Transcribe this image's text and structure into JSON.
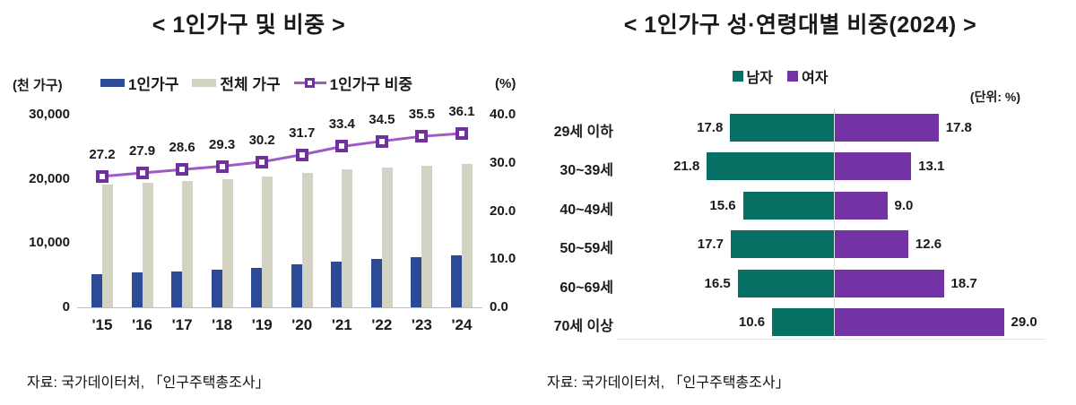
{
  "left_chart": {
    "title": "< 1인가구 및 비중 >",
    "unit_left": "(천 가구)",
    "unit_right": "(%)",
    "legend": [
      {
        "label": "1인가구",
        "color": "#2d4a96"
      },
      {
        "label": "전체 가구",
        "color": "#d3d3c4"
      },
      {
        "label": "1인가구 비중",
        "line_color": "#a05ac8",
        "marker_color": "#7030a0"
      }
    ],
    "source": "자료: 국가데이터처, 「인구주택총조사」"
  },
  "right_chart": {
    "title": "< 1인가구 성·연령대별 비중(2024) >",
    "unit_note": "(단위: %)",
    "legend": [
      {
        "label": "남자",
        "color": "#067065"
      },
      {
        "label": "여자",
        "color": "#7332a5"
      }
    ],
    "source": "자료: 국가데이터처, 「인구주택총조사」"
  },
  "chart_data": [
    {
      "type": "bar",
      "subtype": "grouped-bar-with-line-combo",
      "title": "< 1인가구 및 비중 >",
      "categories": [
        "'15",
        "'16",
        "'17",
        "'18",
        "'19",
        "'20",
        "'21",
        "'22",
        "'23",
        "'24"
      ],
      "series": [
        {
          "name": "1인가구",
          "type": "bar",
          "axis": "left",
          "color": "#2d4a96",
          "values": [
            5203,
            5398,
            5619,
            5849,
            6148,
            6643,
            7166,
            7502,
            7829,
            8042
          ]
        },
        {
          "name": "전체 가구",
          "type": "bar",
          "axis": "left",
          "color": "#d3d3c4",
          "values": [
            19111,
            19368,
            19674,
            19979,
            20343,
            20927,
            21448,
            21774,
            22073,
            22276
          ]
        },
        {
          "name": "1인가구 비중",
          "type": "line",
          "axis": "right",
          "color": "#a05ac8",
          "marker_color": "#7030a0",
          "values": [
            27.2,
            27.9,
            28.6,
            29.3,
            30.2,
            31.7,
            33.4,
            34.5,
            35.5,
            36.1
          ]
        }
      ],
      "left_axis": {
        "label": "(천 가구)",
        "max": 30000,
        "min": 0,
        "ticks": [
          "30,000",
          "20,000",
          "10,000",
          "0"
        ]
      },
      "right_axis": {
        "label": "(%)",
        "max": 40,
        "min": 0,
        "ticks": [
          "40.0",
          "30.0",
          "20.0",
          "10.0",
          "0.0"
        ]
      },
      "grid": false,
      "legend_position": "top"
    },
    {
      "type": "bar",
      "subtype": "diverging-horizontal",
      "title": "< 1인가구 성·연령대별 비중(2024) >",
      "unit": "(단위: %)",
      "categories": [
        "29세 이하",
        "30~39세",
        "40~49세",
        "50~59세",
        "60~69세",
        "70세 이상"
      ],
      "series": [
        {
          "name": "남자",
          "direction": "left",
          "color": "#067065",
          "values": [
            17.8,
            21.8,
            15.6,
            17.7,
            16.5,
            10.6
          ]
        },
        {
          "name": "여자",
          "direction": "right",
          "color": "#7332a5",
          "values": [
            17.8,
            13.1,
            9.0,
            12.6,
            18.7,
            29.0
          ]
        }
      ],
      "grid": false,
      "legend_position": "top"
    }
  ]
}
